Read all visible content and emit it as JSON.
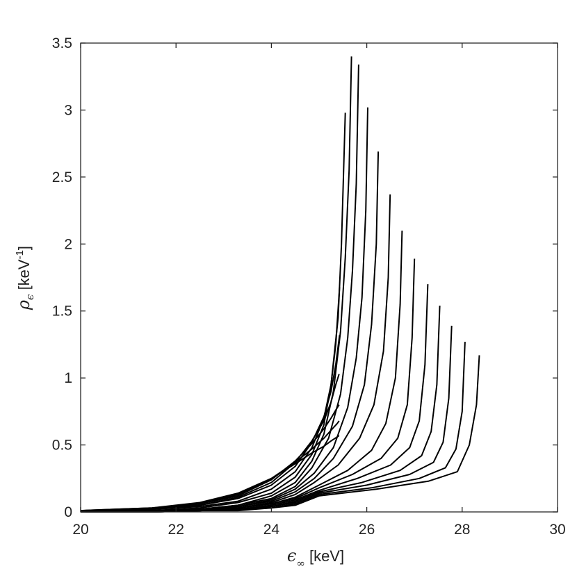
{
  "chart_data": {
    "type": "line",
    "title": "",
    "xlabel": {
      "symbol": "ϵ",
      "subscript": "∞",
      "unit": " [keV]"
    },
    "ylabel": {
      "symbol": "ρ",
      "subscript": "ϵ",
      "unit_prefix": " [keV",
      "unit_exp": "-1",
      "unit_suffix": "]"
    },
    "xlim": [
      20,
      30
    ],
    "ylim": [
      0,
      3.5
    ],
    "x_ticks": [
      "20",
      "22",
      "24",
      "26",
      "28",
      "30"
    ],
    "y_ticks": [
      "0",
      "0.5",
      "1",
      "1.5",
      "2",
      "2.5",
      "3",
      "3.5"
    ],
    "grid": false,
    "line_color": "#000000",
    "series": [
      {
        "x": [
          20.0,
          21.5,
          22.5,
          23.3,
          24.0,
          24.5,
          24.85,
          25.1,
          25.25,
          25.38,
          25.42
        ],
        "y": [
          0.01,
          0.03,
          0.07,
          0.14,
          0.25,
          0.36,
          0.44,
          0.49,
          0.53,
          0.56,
          0.57
        ]
      },
      {
        "x": [
          20.0,
          21.5,
          22.5,
          23.3,
          24.0,
          24.5,
          24.85,
          25.1,
          25.25,
          25.38,
          25.42
        ],
        "y": [
          0.01,
          0.03,
          0.06,
          0.13,
          0.25,
          0.37,
          0.47,
          0.55,
          0.61,
          0.66,
          0.68
        ]
      },
      {
        "x": [
          20.0,
          21.5,
          22.5,
          23.3,
          24.0,
          24.5,
          24.85,
          25.1,
          25.25,
          25.35,
          25.42
        ],
        "y": [
          0.01,
          0.02,
          0.06,
          0.12,
          0.24,
          0.38,
          0.51,
          0.62,
          0.7,
          0.76,
          0.8
        ]
      },
      {
        "x": [
          20.0,
          21.5,
          22.5,
          23.3,
          24.0,
          24.5,
          24.85,
          25.1,
          25.25,
          25.35,
          25.42
        ],
        "y": [
          0.01,
          0.02,
          0.05,
          0.11,
          0.22,
          0.37,
          0.53,
          0.68,
          0.82,
          0.95,
          1.03
        ]
      },
      {
        "x": [
          20.0,
          21.5,
          22.5,
          23.3,
          24.0,
          24.5,
          24.85,
          25.1,
          25.25,
          25.35,
          25.43
        ],
        "y": [
          0.01,
          0.02,
          0.05,
          0.1,
          0.2,
          0.34,
          0.52,
          0.71,
          0.9,
          1.1,
          1.32
        ]
      },
      {
        "x": [
          20.0,
          21.5,
          22.5,
          23.3,
          24.0,
          24.5,
          24.85,
          25.1,
          25.25,
          25.35,
          25.43
        ],
        "y": [
          0.0,
          0.02,
          0.04,
          0.08,
          0.17,
          0.3,
          0.48,
          0.7,
          0.95,
          1.25,
          1.68
        ]
      },
      {
        "x": [
          20.0,
          21.5,
          22.5,
          23.3,
          24.0,
          24.5,
          24.85,
          25.1,
          25.25,
          25.4,
          25.47,
          25.55
        ],
        "y": [
          0.0,
          0.01,
          0.03,
          0.07,
          0.14,
          0.26,
          0.43,
          0.65,
          0.95,
          1.45,
          2.0,
          2.98
        ]
      },
      {
        "x": [
          20.0,
          21.5,
          22.5,
          23.3,
          24.0,
          24.5,
          24.85,
          25.1,
          25.3,
          25.45,
          25.55,
          25.63,
          25.68
        ],
        "y": [
          0.0,
          0.01,
          0.02,
          0.05,
          0.12,
          0.22,
          0.38,
          0.58,
          0.9,
          1.35,
          1.9,
          2.55,
          3.4
        ]
      },
      {
        "x": [
          20.0,
          21.5,
          22.5,
          23.3,
          24.0,
          24.5,
          24.85,
          25.2,
          25.45,
          25.6,
          25.7,
          25.78,
          25.83
        ],
        "y": [
          0.0,
          0.01,
          0.02,
          0.05,
          0.1,
          0.19,
          0.33,
          0.55,
          0.88,
          1.3,
          1.8,
          2.45,
          3.34
        ]
      },
      {
        "x": [
          20.0,
          21.5,
          22.5,
          23.3,
          24.0,
          24.5,
          24.9,
          25.3,
          25.6,
          25.78,
          25.9,
          25.98,
          26.02
        ],
        "y": [
          0.0,
          0.01,
          0.02,
          0.04,
          0.09,
          0.17,
          0.29,
          0.48,
          0.78,
          1.15,
          1.6,
          2.25,
          3.02
        ]
      },
      {
        "x": [
          20.0,
          21.5,
          22.5,
          23.3,
          24.0,
          24.5,
          24.9,
          25.3,
          25.7,
          25.95,
          26.1,
          26.2,
          26.24
        ],
        "y": [
          0.0,
          0.01,
          0.02,
          0.04,
          0.08,
          0.15,
          0.25,
          0.4,
          0.64,
          0.95,
          1.4,
          2.0,
          2.69
        ]
      },
      {
        "x": [
          20.0,
          21.5,
          22.5,
          23.3,
          24.0,
          24.5,
          24.9,
          25.4,
          25.85,
          26.15,
          26.35,
          26.45,
          26.49
        ],
        "y": [
          0.0,
          0.01,
          0.02,
          0.03,
          0.07,
          0.13,
          0.22,
          0.35,
          0.55,
          0.8,
          1.2,
          1.75,
          2.37
        ]
      },
      {
        "x": [
          20.0,
          21.5,
          22.5,
          23.3,
          24.0,
          24.5,
          25.0,
          25.6,
          26.1,
          26.4,
          26.6,
          26.7,
          26.74
        ],
        "y": [
          0.0,
          0.01,
          0.01,
          0.03,
          0.06,
          0.11,
          0.2,
          0.31,
          0.46,
          0.66,
          1.0,
          1.55,
          2.1
        ]
      },
      {
        "x": [
          20.0,
          21.5,
          22.5,
          23.3,
          24.0,
          24.5,
          25.0,
          25.7,
          26.3,
          26.65,
          26.85,
          26.95,
          27.0
        ],
        "y": [
          0.0,
          0.01,
          0.01,
          0.03,
          0.06,
          0.1,
          0.18,
          0.28,
          0.4,
          0.55,
          0.8,
          1.3,
          1.89
        ]
      },
      {
        "x": [
          20.0,
          21.5,
          22.5,
          23.3,
          24.0,
          24.5,
          25.0,
          25.8,
          26.5,
          26.9,
          27.1,
          27.22,
          27.28
        ],
        "y": [
          0.0,
          0.0,
          0.01,
          0.02,
          0.05,
          0.09,
          0.16,
          0.25,
          0.35,
          0.48,
          0.68,
          1.1,
          1.7
        ]
      },
      {
        "x": [
          20.0,
          21.5,
          22.5,
          23.3,
          24.0,
          24.5,
          25.0,
          25.9,
          26.7,
          27.15,
          27.35,
          27.47,
          27.53
        ],
        "y": [
          0.0,
          0.0,
          0.01,
          0.02,
          0.04,
          0.08,
          0.15,
          0.22,
          0.31,
          0.42,
          0.6,
          0.95,
          1.54
        ]
      },
      {
        "x": [
          20.0,
          21.5,
          22.5,
          23.3,
          24.0,
          24.5,
          25.0,
          26.0,
          26.9,
          27.4,
          27.6,
          27.72,
          27.78
        ],
        "y": [
          0.0,
          0.0,
          0.01,
          0.02,
          0.04,
          0.07,
          0.14,
          0.2,
          0.28,
          0.37,
          0.52,
          0.85,
          1.39
        ]
      },
      {
        "x": [
          20.0,
          21.5,
          22.5,
          23.3,
          24.0,
          24.5,
          25.0,
          26.1,
          27.1,
          27.65,
          27.87,
          28.0,
          28.06
        ],
        "y": [
          0.0,
          0.0,
          0.01,
          0.02,
          0.03,
          0.06,
          0.13,
          0.18,
          0.25,
          0.33,
          0.47,
          0.75,
          1.27
        ]
      },
      {
        "x": [
          20.0,
          21.5,
          22.5,
          23.3,
          24.0,
          24.5,
          25.0,
          26.2,
          27.3,
          27.9,
          28.15,
          28.3,
          28.36
        ],
        "y": [
          0.0,
          0.0,
          0.01,
          0.01,
          0.03,
          0.05,
          0.12,
          0.17,
          0.23,
          0.3,
          0.5,
          0.8,
          1.17
        ]
      }
    ]
  }
}
